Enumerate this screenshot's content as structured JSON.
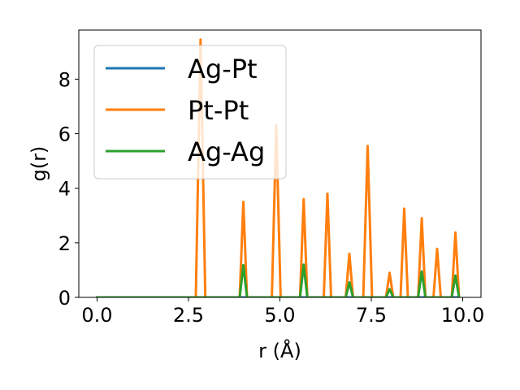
{
  "chart_data": {
    "type": "line",
    "title": "",
    "xlabel": "r (Å)",
    "ylabel": "g(r)",
    "xlim": [
      -0.5,
      10.5
    ],
    "ylim": [
      0,
      9.8
    ],
    "xticks": [
      0.0,
      2.5,
      5.0,
      7.5,
      10.0
    ],
    "xtick_labels": [
      "0.0",
      "2.5",
      "5.0",
      "7.5",
      "10.0"
    ],
    "yticks": [
      0,
      2,
      4,
      6,
      8
    ],
    "ytick_labels": [
      "0",
      "2",
      "4",
      "6",
      "8"
    ],
    "grid": false,
    "legend_position": "top-left",
    "series": [
      {
        "name": "Ag-Pt",
        "color": "#1f77b4",
        "x": [
          0.0,
          9.9
        ],
        "y": [
          0.0,
          0.0
        ]
      },
      {
        "name": "Pt-Pt",
        "color": "#ff7f0e",
        "x": [
          0.0,
          2.7,
          2.83,
          2.96,
          3.9,
          4.0,
          4.1,
          4.78,
          4.9,
          5.02,
          5.55,
          5.65,
          5.75,
          6.2,
          6.3,
          6.4,
          6.8,
          6.9,
          7.0,
          7.28,
          7.4,
          7.52,
          7.9,
          8.0,
          8.1,
          8.3,
          8.4,
          8.5,
          8.78,
          8.88,
          8.98,
          9.2,
          9.3,
          9.4,
          9.7,
          9.8,
          9.9
        ],
        "y": [
          0.0,
          0.0,
          9.45,
          0.0,
          0.0,
          3.5,
          0.0,
          0.0,
          6.3,
          0.0,
          0.0,
          3.6,
          0.0,
          0.0,
          3.8,
          0.0,
          0.0,
          1.6,
          0.0,
          0.0,
          5.55,
          0.0,
          0.0,
          0.9,
          0.0,
          0.0,
          3.25,
          0.0,
          0.0,
          2.9,
          0.0,
          0.0,
          1.78,
          0.0,
          0.0,
          2.38,
          0.0
        ]
      },
      {
        "name": "Ag-Ag",
        "color": "#2ca02c",
        "x": [
          0.0,
          3.9,
          4.0,
          4.1,
          5.55,
          5.65,
          5.75,
          6.8,
          6.9,
          7.0,
          7.9,
          8.0,
          8.1,
          8.78,
          8.88,
          8.98,
          9.7,
          9.8,
          9.9
        ],
        "y": [
          0.0,
          0.0,
          1.18,
          0.0,
          0.0,
          1.2,
          0.0,
          0.0,
          0.55,
          0.0,
          0.0,
          0.3,
          0.0,
          0.0,
          0.95,
          0.0,
          0.0,
          0.8,
          0.0
        ]
      }
    ]
  }
}
